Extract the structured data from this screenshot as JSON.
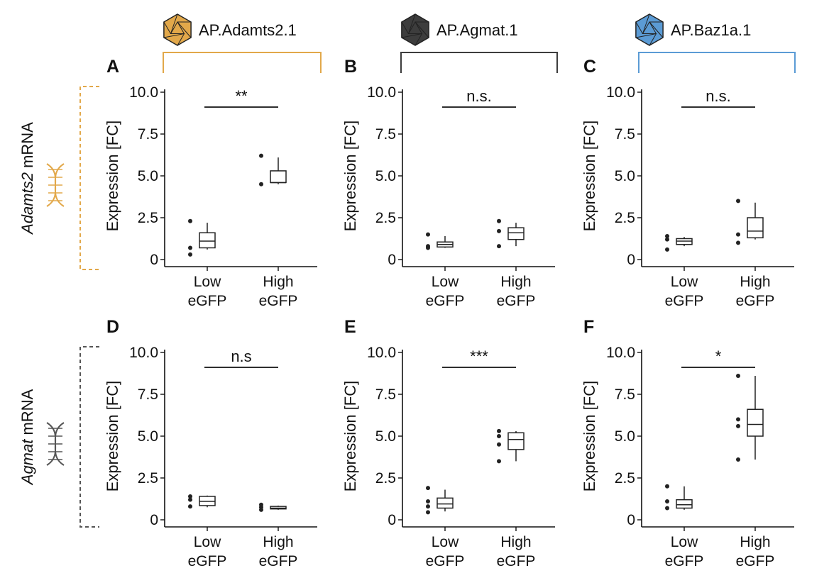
{
  "vectors": [
    {
      "label": "AP.Adamts2.1",
      "color": "#e2a84a"
    },
    {
      "label": "AP.Agmat.1",
      "color": "#3d3d3d"
    },
    {
      "label": "AP.Baz1a.1",
      "color": "#5b9bd5"
    }
  ],
  "rows": [
    {
      "gene": "Adamts2",
      "suffix": " mRNA",
      "color": "#e2a84a",
      "icon": "dna-icon"
    },
    {
      "gene": "Agmat",
      "suffix": " mRNA",
      "color": "#555555",
      "icon": "dna-icon"
    }
  ],
  "chart_data": [
    {
      "panel": "A",
      "type": "box",
      "ylabel": "Expression [FC]",
      "ylim": [
        0,
        10
      ],
      "yticks": [
        "10.0",
        "7.5",
        "5.0",
        "2.5",
        "0"
      ],
      "categories": [
        "Low eGFP",
        "High eGFP"
      ],
      "category_lines": [
        [
          "Low",
          "eGFP"
        ],
        [
          "High",
          "eGFP"
        ]
      ],
      "significance": "**",
      "boxes": [
        {
          "min": 0.6,
          "q1": 0.7,
          "median": 1.1,
          "q3": 1.6,
          "max": 2.2,
          "points": [
            2.3,
            0.7,
            0.3
          ]
        },
        {
          "min": 4.5,
          "q1": 4.6,
          "median": 4.6,
          "q3": 5.3,
          "max": 6.1,
          "points": [
            6.2,
            4.5
          ]
        }
      ]
    },
    {
      "panel": "B",
      "type": "box",
      "ylabel": "Expression [FC]",
      "ylim": [
        0,
        10
      ],
      "yticks": [
        "10.0",
        "7.5",
        "5.0",
        "2.5",
        "0"
      ],
      "categories": [
        "Low eGFP",
        "High eGFP"
      ],
      "category_lines": [
        [
          "Low",
          "eGFP"
        ],
        [
          "High",
          "eGFP"
        ]
      ],
      "significance": "n.s.",
      "boxes": [
        {
          "min": 0.7,
          "q1": 0.75,
          "median": 0.9,
          "q3": 1.05,
          "max": 1.4,
          "points": [
            1.5,
            0.8,
            0.7
          ]
        },
        {
          "min": 0.8,
          "q1": 1.2,
          "median": 1.6,
          "q3": 1.9,
          "max": 2.2,
          "points": [
            2.3,
            1.7,
            0.8
          ]
        }
      ]
    },
    {
      "panel": "C",
      "type": "box",
      "ylabel": "Expression [FC]",
      "ylim": [
        0,
        10
      ],
      "yticks": [
        "10.0",
        "7.5",
        "5.0",
        "2.5",
        "0"
      ],
      "categories": [
        "Low eGFP",
        "High eGFP"
      ],
      "category_lines": [
        [
          "Low",
          "eGFP"
        ],
        [
          "High",
          "eGFP"
        ]
      ],
      "significance": "n.s.",
      "boxes": [
        {
          "min": 0.8,
          "q1": 0.9,
          "median": 1.1,
          "q3": 1.25,
          "max": 1.35,
          "points": [
            1.4,
            1.2,
            0.6
          ]
        },
        {
          "min": 1.2,
          "q1": 1.3,
          "median": 1.7,
          "q3": 2.5,
          "max": 3.4,
          "points": [
            3.5,
            1.5,
            1.0
          ]
        }
      ]
    },
    {
      "panel": "D",
      "type": "box",
      "ylabel": "Expression [FC]",
      "ylim": [
        0,
        10
      ],
      "yticks": [
        "10.0",
        "7.5",
        "5.0",
        "2.5",
        "0"
      ],
      "categories": [
        "Low eGFP",
        "High eGFP"
      ],
      "category_lines": [
        [
          "Low",
          "eGFP"
        ],
        [
          "High",
          "eGFP"
        ]
      ],
      "significance": "n.s",
      "boxes": [
        {
          "min": 0.75,
          "q1": 0.85,
          "median": 1.1,
          "q3": 1.4,
          "max": 1.45,
          "points": [
            1.4,
            1.2,
            0.8
          ]
        },
        {
          "min": 0.6,
          "q1": 0.65,
          "median": 0.7,
          "q3": 0.8,
          "max": 0.85,
          "points": [
            0.9,
            0.75,
            0.6
          ]
        }
      ]
    },
    {
      "panel": "E",
      "type": "box",
      "ylabel": "Expression [FC]",
      "ylim": [
        0,
        10
      ],
      "yticks": [
        "10.0",
        "7.5",
        "5.0",
        "2.5",
        "0"
      ],
      "categories": [
        "Low eGFP",
        "High eGFP"
      ],
      "category_lines": [
        [
          "Low",
          "eGFP"
        ],
        [
          "High",
          "eGFP"
        ]
      ],
      "significance": "***",
      "boxes": [
        {
          "min": 0.5,
          "q1": 0.7,
          "median": 0.95,
          "q3": 1.3,
          "max": 1.8,
          "points": [
            1.9,
            1.1,
            0.8,
            0.45
          ]
        },
        {
          "min": 3.5,
          "q1": 4.2,
          "median": 4.8,
          "q3": 5.2,
          "max": 5.3,
          "points": [
            5.3,
            5.0,
            4.5,
            3.5
          ]
        }
      ]
    },
    {
      "panel": "F",
      "type": "box",
      "ylabel": "Expression [FC]",
      "ylim": [
        0,
        10
      ],
      "yticks": [
        "10.0",
        "7.5",
        "5.0",
        "2.5",
        "0"
      ],
      "categories": [
        "Low eGFP",
        "High eGFP"
      ],
      "category_lines": [
        [
          "Low",
          "eGFP"
        ],
        [
          "High",
          "eGFP"
        ]
      ],
      "significance": "*",
      "boxes": [
        {
          "min": 0.6,
          "q1": 0.7,
          "median": 0.9,
          "q3": 1.2,
          "max": 2.0,
          "points": [
            2.0,
            1.1,
            0.7
          ]
        },
        {
          "min": 3.6,
          "q1": 5.0,
          "median": 5.7,
          "q3": 6.6,
          "max": 8.6,
          "points": [
            8.6,
            6.0,
            5.6,
            3.6
          ]
        }
      ]
    }
  ]
}
